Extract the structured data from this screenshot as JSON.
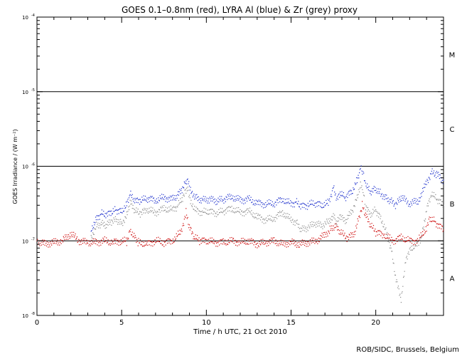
{
  "chart_data": {
    "type": "scatter",
    "title": "GOES 0.1–0.8nm (red), LYRA Al (blue) & Zr (grey) proxy",
    "xlabel": "Time / h UTC, 21 Oct 2010",
    "ylabel": "GOES Irradiance / (W m⁻²)",
    "xlim": [
      0,
      24
    ],
    "ylim": [
      1e-08,
      0.0001
    ],
    "yscale": "log",
    "x_ticks": [
      {
        "value": 0,
        "label": "0"
      },
      {
        "value": 5,
        "label": "5"
      },
      {
        "value": 10,
        "label": "10"
      },
      {
        "value": 15,
        "label": "15"
      },
      {
        "value": 20,
        "label": "20"
      }
    ],
    "y_ticks": [
      {
        "exp": -8,
        "base": "10",
        "sup": "-8"
      },
      {
        "exp": -7,
        "base": "10",
        "sup": "-7"
      },
      {
        "exp": -6,
        "base": "10",
        "sup": "-6"
      },
      {
        "exp": -5,
        "base": "10",
        "sup": "-5"
      },
      {
        "exp": -4,
        "base": "10",
        "sup": "-4"
      }
    ],
    "class_thresholds": [
      1e-07,
      1e-06,
      1e-05
    ],
    "flare_classes": [
      {
        "label": "A",
        "exp": -7.5
      },
      {
        "label": "B",
        "exp": -6.5
      },
      {
        "label": "C",
        "exp": -5.5
      },
      {
        "label": "M",
        "exp": -4.5
      }
    ],
    "grid": false,
    "series": [
      {
        "color": "#cc0000",
        "x": [
          0,
          0.5,
          1,
          1.5,
          2,
          2.5,
          3,
          3.5,
          4,
          4.5,
          5,
          5.3,
          5.5,
          5.8,
          6,
          6.5,
          7,
          7.5,
          8,
          8.5,
          8.8,
          9,
          9.3,
          9.6,
          10,
          10.5,
          11,
          11.5,
          12,
          12.5,
          13,
          13.5,
          14,
          14.5,
          15,
          15.5,
          16,
          16.5,
          17,
          17.3,
          17.6,
          17.9,
          18.3,
          18.7,
          19,
          19.2,
          19.4,
          19.7,
          20,
          20.5,
          21,
          21.5,
          22,
          22.5,
          23,
          23.2,
          23.5,
          24
        ],
        "y": [
          1e-07,
          9e-08,
          9.5e-08,
          1e-07,
          1.25e-07,
          1e-07,
          9.5e-08,
          9.5e-08,
          1e-07,
          9.5e-08,
          1e-07,
          9.8e-08,
          1.4e-07,
          1.1e-07,
          9.5e-08,
          9e-08,
          1e-07,
          9.5e-08,
          1e-07,
          1.3e-07,
          2.4e-07,
          1.5e-07,
          1.1e-07,
          1e-07,
          1e-07,
          9.5e-08,
          9.5e-08,
          1e-07,
          9.5e-08,
          1e-07,
          9e-08,
          9.5e-08,
          1e-07,
          9e-08,
          9.5e-08,
          9e-08,
          9.5e-08,
          1e-07,
          1.2e-07,
          1.4e-07,
          1.6e-07,
          1.3e-07,
          1.1e-07,
          1.2e-07,
          2e-07,
          3e-07,
          2.2e-07,
          1.6e-07,
          1.3e-07,
          1.2e-07,
          1e-07,
          1.1e-07,
          1e-07,
          1e-07,
          1.5e-07,
          2e-07,
          1.8e-07,
          1.4e-07
        ]
      },
      {
        "color": "#1c2fcc",
        "x": [
          3.2,
          3.5,
          3.8,
          4.1,
          4.4,
          4.7,
          5,
          5.3,
          5.5,
          5.8,
          6.1,
          6.5,
          7,
          7.5,
          8,
          8.3,
          8.6,
          8.8,
          8.9,
          9.1,
          9.4,
          9.8,
          10.2,
          10.6,
          11,
          11.5,
          12,
          12.5,
          13,
          13.5,
          14,
          14.5,
          15,
          15.3,
          15.6,
          16,
          16.4,
          16.8,
          17.2,
          17.5,
          17.7,
          17.9,
          18.2,
          18.6,
          18.9,
          19.1,
          19.25,
          19.4,
          19.7,
          20,
          20.3,
          20.6,
          20.9,
          21.2,
          21.5,
          22,
          22.5,
          23,
          23.3,
          23.6,
          24
        ],
        "y": [
          1.4e-07,
          2e-07,
          2.3e-07,
          2.2e-07,
          2.4e-07,
          2.6e-07,
          2.5e-07,
          3.1e-07,
          4.2e-07,
          3.4e-07,
          3.4e-07,
          3.7e-07,
          3.5e-07,
          3.8e-07,
          3.6e-07,
          4e-07,
          5e-07,
          6.2e-07,
          7e-07,
          4.6e-07,
          3.8e-07,
          3.5e-07,
          3.6e-07,
          3.4e-07,
          3.6e-07,
          3.9e-07,
          3.5e-07,
          3.6e-07,
          3.2e-07,
          3.1e-07,
          3.2e-07,
          3.6e-07,
          3.1e-07,
          3.3e-07,
          2.9e-07,
          3e-07,
          3.2e-07,
          3e-07,
          3.2e-07,
          5.2e-07,
          3.5e-07,
          4.2e-07,
          3.8e-07,
          4.6e-07,
          6.5e-07,
          9.5e-07,
          8e-07,
          5.5e-07,
          4.5e-07,
          5e-07,
          4.3e-07,
          3.8e-07,
          3.4e-07,
          3e-07,
          3.8e-07,
          3.2e-07,
          3.4e-07,
          6e-07,
          8.3e-07,
          7.8e-07,
          6.5e-07
        ]
      },
      {
        "color": "#888888",
        "x": [
          3.2,
          3.5,
          3.8,
          4.1,
          4.4,
          4.7,
          5,
          5.3,
          5.5,
          5.8,
          6.1,
          6.5,
          7,
          7.5,
          8,
          8.3,
          8.6,
          8.8,
          8.9,
          9.1,
          9.4,
          9.8,
          10.2,
          10.6,
          11,
          11.5,
          12,
          12.5,
          13,
          13.5,
          14,
          14.5,
          15,
          15.3,
          15.6,
          16,
          16.4,
          16.8,
          17.2,
          17.5,
          17.7,
          17.9,
          18.2,
          18.6,
          18.9,
          19.1,
          19.25,
          19.4,
          19.7,
          20,
          20.3,
          20.6,
          20.9,
          21.2,
          21.5,
          21.8,
          22.1,
          22.4,
          22.7,
          23,
          23.3,
          23.6,
          24
        ],
        "y": [
          1.1e-07,
          1.6e-07,
          1.7e-07,
          1.6e-07,
          1.8e-07,
          1.9e-07,
          1.7e-07,
          2.2e-07,
          3.3e-07,
          2.5e-07,
          2.3e-07,
          2.6e-07,
          2.4e-07,
          2.7e-07,
          2.6e-07,
          2.9e-07,
          3.7e-07,
          4.7e-07,
          5.2e-07,
          3.2e-07,
          2.6e-07,
          2.4e-07,
          2.5e-07,
          2.3e-07,
          2.5e-07,
          2.7e-07,
          2.4e-07,
          2.5e-07,
          2.1e-07,
          1.9e-07,
          2e-07,
          2.4e-07,
          1.9e-07,
          1.8e-07,
          1.4e-07,
          1.5e-07,
          1.7e-07,
          1.6e-07,
          1.8e-07,
          2.2e-07,
          1.7e-07,
          2.1e-07,
          1.8e-07,
          2.5e-07,
          3.8e-07,
          5.8e-07,
          4.5e-07,
          2.8e-07,
          2.2e-07,
          2.6e-07,
          2e-07,
          1.4e-07,
          8e-08,
          3e-08,
          1.6e-08,
          6e-08,
          8e-08,
          9e-08,
          1.1e-07,
          2.6e-07,
          4.2e-07,
          3.6e-07,
          3e-07
        ]
      }
    ]
  },
  "credit": "ROB/SIDC, Brussels, Belgium"
}
